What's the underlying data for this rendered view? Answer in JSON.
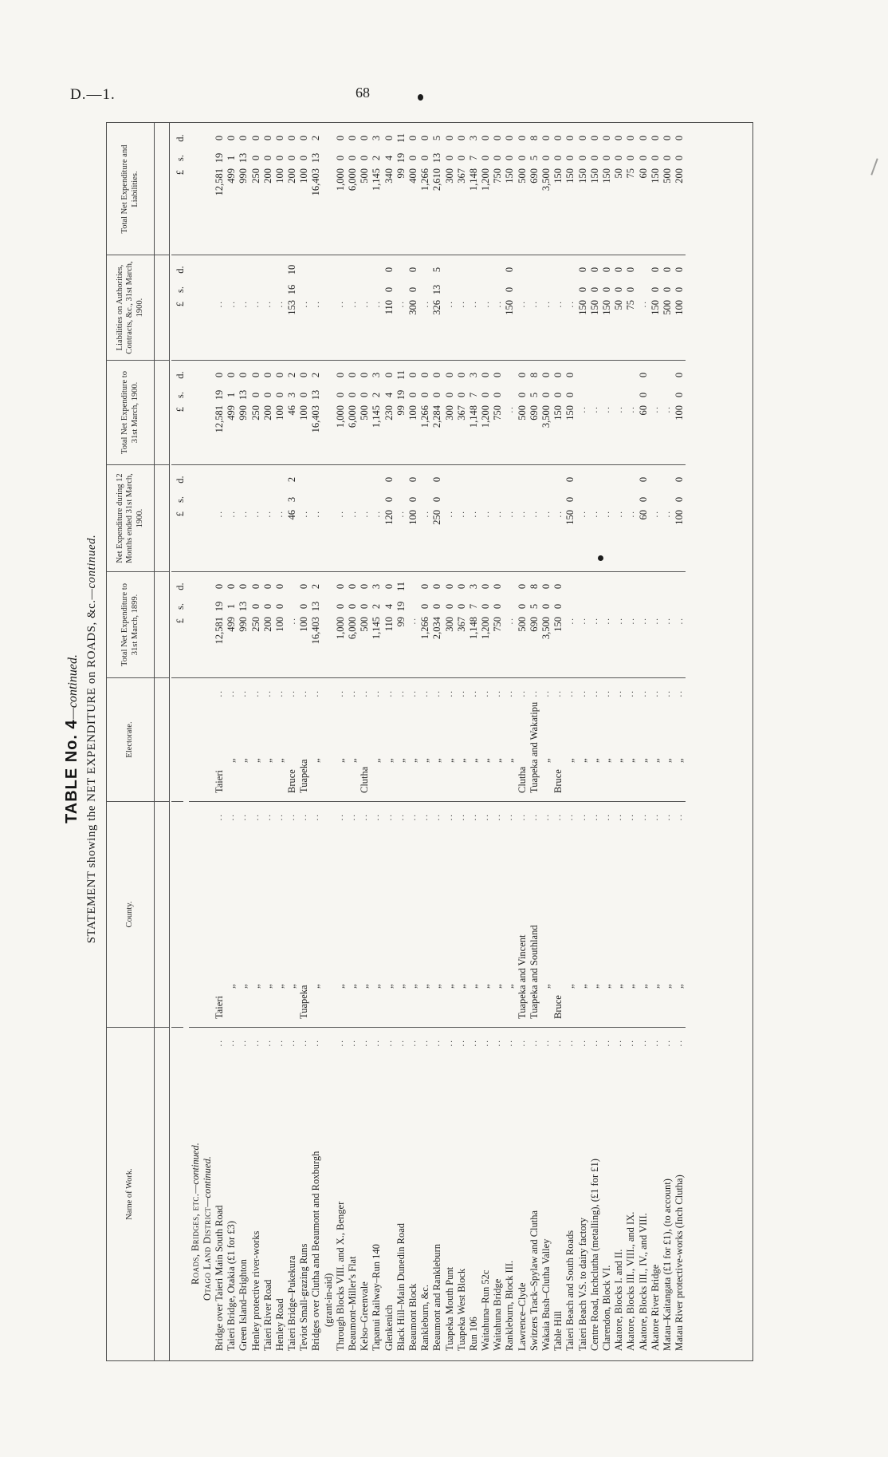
{
  "page": {
    "doc_ref": "D.—1.",
    "page_number": "68"
  },
  "title": {
    "line1_main": "TABLE No. 4",
    "line1_cont": "—continued.",
    "line2_main": "STATEMENT showing the NET EXPENDITURE on ROADS, &c.",
    "line2_cont": "—continued."
  },
  "table": {
    "headers": [
      "Name of Work.",
      "County.",
      "Electorate.",
      "Total Net Expenditure to 31st March, 1899.",
      "Net Expenditure during 12 Months ended 31st March, 1900.",
      "Total Net Expenditure to 31st March, 1900.",
      "Liabilities on Authorities, Contracts, &c., 31st March, 1900.",
      "Total Net Expenditure and Liabilities."
    ],
    "currency_labels": {
      "pound": "£",
      "shillings": "s.",
      "pence": "d."
    },
    "section_heading_1_main": "Roads, Bridges, etc.",
    "section_heading_1_cont": "—continued.",
    "section_heading_2_main": "Otago Land District",
    "section_heading_2_cont": "—continued.",
    "ditto_mark": "„",
    "leader": "..",
    "rows": [
      {
        "name": "Bridge over Taieri Main South Road",
        "county": "Taieri",
        "electorate": "Taieri",
        "exp1899": [
          "12,581",
          "19",
          "0"
        ],
        "net12": null,
        "exp1900": [
          "12,581",
          "19",
          "0"
        ],
        "liab": null,
        "total": [
          "12,581",
          "19",
          "0"
        ]
      },
      {
        "name": "Taieri Bridge, Otakia (£1 for £3)",
        "county": "„",
        "electorate": "„",
        "exp1899": [
          "499",
          "1",
          "0"
        ],
        "net12": null,
        "exp1900": [
          "499",
          "1",
          "0"
        ],
        "liab": null,
        "total": [
          "499",
          "1",
          "0"
        ]
      },
      {
        "name": "Green Island–Brighton",
        "county": "„",
        "electorate": "„",
        "exp1899": [
          "990",
          "13",
          "0"
        ],
        "net12": null,
        "exp1900": [
          "990",
          "13",
          "0"
        ],
        "liab": null,
        "total": [
          "990",
          "13",
          "0"
        ]
      },
      {
        "name": "Henley protective river-works",
        "county": "„",
        "electorate": "„",
        "exp1899": [
          "250",
          "0",
          "0"
        ],
        "net12": null,
        "exp1900": [
          "250",
          "0",
          "0"
        ],
        "liab": null,
        "total": [
          "250",
          "0",
          "0"
        ]
      },
      {
        "name": "Taieri River Road",
        "county": "„",
        "electorate": "„",
        "exp1899": [
          "200",
          "0",
          "0"
        ],
        "net12": null,
        "exp1900": [
          "200",
          "0",
          "0"
        ],
        "liab": null,
        "total": [
          "200",
          "0",
          "0"
        ]
      },
      {
        "name": "Henley Road",
        "county": "„",
        "electorate": "„",
        "exp1899": [
          "100",
          "0",
          "0"
        ],
        "net12": null,
        "exp1900": [
          "100",
          "0",
          "0"
        ],
        "liab": null,
        "total": [
          "100",
          "0",
          "0"
        ]
      },
      {
        "name": "Taieri Bridge–Pukekura",
        "county": "„",
        "electorate": "Bruce",
        "exp1899": null,
        "net12": [
          "46",
          "3",
          "2"
        ],
        "exp1900": [
          "46",
          "3",
          "2"
        ],
        "liab": [
          "153",
          "16",
          "10"
        ],
        "total": [
          "200",
          "0",
          "0"
        ]
      },
      {
        "name": "Teviot Small-grazing Runs",
        "county": "Tuapeka",
        "electorate": "Tuapeka",
        "exp1899": [
          "100",
          "0",
          "0"
        ],
        "net12": null,
        "exp1900": [
          "100",
          "0",
          "0"
        ],
        "liab": null,
        "total": [
          "100",
          "0",
          "0"
        ]
      },
      {
        "name": "Bridges over Clutha and Beaumont and Roxburgh",
        "sub_name": "(grant-in-aid)",
        "county": "„",
        "electorate": "„",
        "exp1899": [
          "16,403",
          "13",
          "2"
        ],
        "net12": null,
        "exp1900": [
          "16,403",
          "13",
          "2"
        ],
        "liab": null,
        "total": [
          "16,403",
          "13",
          "2"
        ]
      },
      {
        "name": "Through Blocks VIII. and X., Benger",
        "county": "„",
        "electorate": "„",
        "exp1899": [
          "1,000",
          "0",
          "0"
        ],
        "net12": null,
        "exp1900": [
          "1,000",
          "0",
          "0"
        ],
        "liab": null,
        "total": [
          "1,000",
          "0",
          "0"
        ]
      },
      {
        "name": "Beaumont–Miller's Flat",
        "county": "„",
        "electorate": "„",
        "exp1899": [
          "6,000",
          "0",
          "0"
        ],
        "net12": null,
        "exp1900": [
          "6,000",
          "0",
          "0"
        ],
        "liab": null,
        "total": [
          "6,000",
          "0",
          "0"
        ]
      },
      {
        "name": "Kelso–Greenvale",
        "county": "„",
        "electorate": "Clutha",
        "exp1899": [
          "500",
          "0",
          "0"
        ],
        "net12": null,
        "exp1900": [
          "500",
          "0",
          "0"
        ],
        "liab": null,
        "total": [
          "500",
          "0",
          "0"
        ]
      },
      {
        "name": "Tapanui Railway–Run 140",
        "county": "„",
        "electorate": "„",
        "exp1899": [
          "1,145",
          "2",
          "3"
        ],
        "net12": null,
        "exp1900": [
          "1,145",
          "2",
          "3"
        ],
        "liab": null,
        "total": [
          "1,145",
          "2",
          "3"
        ]
      },
      {
        "name": "Glenkenich",
        "county": "„",
        "electorate": "„",
        "exp1899": [
          "110",
          "4",
          "0"
        ],
        "net12": [
          "120",
          "0",
          "0"
        ],
        "exp1900": [
          "230",
          "4",
          "0"
        ],
        "liab": [
          "110",
          "0",
          "0"
        ],
        "total": [
          "340",
          "4",
          "0"
        ]
      },
      {
        "name": "Black Hill–Main Dunedin Road",
        "county": "„",
        "electorate": "„",
        "exp1899": [
          "99",
          "19",
          "11"
        ],
        "net12": null,
        "exp1900": [
          "99",
          "19",
          "11"
        ],
        "liab": null,
        "total": [
          "99",
          "19",
          "11"
        ]
      },
      {
        "name": "Beaumont Block",
        "county": "„",
        "electorate": "„",
        "exp1899": null,
        "net12": [
          "100",
          "0",
          "0"
        ],
        "exp1900": [
          "100",
          "0",
          "0"
        ],
        "liab": [
          "300",
          "0",
          "0"
        ],
        "total": [
          "400",
          "0",
          "0"
        ]
      },
      {
        "name": "Rankleburn, &c.",
        "county": "„",
        "electorate": "„",
        "exp1899": [
          "1,266",
          "0",
          "0"
        ],
        "net12": null,
        "exp1900": [
          "1,266",
          "0",
          "0"
        ],
        "liab": null,
        "total": [
          "1,266",
          "0",
          "0"
        ]
      },
      {
        "name": "Beaumont and Rankleburn",
        "county": "„",
        "electorate": "„",
        "exp1899": [
          "2,034",
          "0",
          "0"
        ],
        "net12": [
          "250",
          "0",
          "0"
        ],
        "exp1900": [
          "2,284",
          "0",
          "0"
        ],
        "liab": [
          "326",
          "13",
          "5"
        ],
        "total": [
          "2,610",
          "13",
          "5"
        ]
      },
      {
        "name": "Tuapeka Mouth Punt",
        "county": "„",
        "electorate": "„",
        "exp1899": [
          "300",
          "0",
          "0"
        ],
        "net12": null,
        "exp1900": [
          "300",
          "0",
          "0"
        ],
        "liab": null,
        "total": [
          "300",
          "0",
          "0"
        ]
      },
      {
        "name": "Tuapeka West Block",
        "county": "„",
        "electorate": "„",
        "exp1899": [
          "367",
          "0",
          "0"
        ],
        "net12": null,
        "exp1900": [
          "367",
          "0",
          "0"
        ],
        "liab": null,
        "total": [
          "367",
          "0",
          "0"
        ]
      },
      {
        "name": "Run 106",
        "county": "„",
        "electorate": "„",
        "exp1899": [
          "1,148",
          "7",
          "3"
        ],
        "net12": null,
        "exp1900": [
          "1,148",
          "7",
          "3"
        ],
        "liab": null,
        "total": [
          "1,148",
          "7",
          "3"
        ]
      },
      {
        "name": "Waitahuna–Run 52c",
        "county": "„",
        "electorate": "„",
        "exp1899": [
          "1,200",
          "0",
          "0"
        ],
        "net12": null,
        "exp1900": [
          "1,200",
          "0",
          "0"
        ],
        "liab": null,
        "total": [
          "1,200",
          "0",
          "0"
        ]
      },
      {
        "name": "Waitahuna Bridge",
        "county": "„",
        "electorate": "„",
        "exp1899": [
          "750",
          "0",
          "0"
        ],
        "net12": null,
        "exp1900": [
          "750",
          "0",
          "0"
        ],
        "liab": null,
        "total": [
          "750",
          "0",
          "0"
        ]
      },
      {
        "name": "Rankleburn, Block III.",
        "county": "„",
        "electorate": "„",
        "exp1899": null,
        "net12": null,
        "exp1900": null,
        "liab": [
          "150",
          "0",
          "0"
        ],
        "total": [
          "150",
          "0",
          "0"
        ]
      },
      {
        "name": "Lawrence–Clyde",
        "county": "Tuapeka and Vincent",
        "electorate": "Clutha",
        "exp1899": [
          "500",
          "0",
          "0"
        ],
        "net12": null,
        "exp1900": [
          "500",
          "0",
          "0"
        ],
        "liab": null,
        "total": [
          "500",
          "0",
          "0"
        ]
      },
      {
        "name": "Switzers Track–Spylaw and Clutha",
        "county": "Tuapeka and Southland",
        "electorate": "Tuapeka and Wakatipu",
        "exp1899": [
          "690",
          "5",
          "8"
        ],
        "net12": null,
        "exp1900": [
          "690",
          "5",
          "8"
        ],
        "liab": null,
        "total": [
          "690",
          "5",
          "8"
        ]
      },
      {
        "name": "Wakaia Bush–Clutha Valley",
        "county": "„",
        "electorate": "„",
        "exp1899": [
          "3,500",
          "0",
          "0"
        ],
        "net12": null,
        "exp1900": [
          "3,500",
          "0",
          "0"
        ],
        "liab": null,
        "total": [
          "3,500",
          "0",
          "0"
        ]
      },
      {
        "name": "Table Hill",
        "county": "Bruce",
        "electorate": "Bruce",
        "exp1899": [
          "150",
          "0",
          "0"
        ],
        "net12": null,
        "exp1900": [
          "150",
          "0",
          "0"
        ],
        "liab": null,
        "total": [
          "150",
          "0",
          "0"
        ]
      },
      {
        "name": "Taieri Beach and South Roads",
        "county": "„",
        "electorate": "„",
        "exp1899": null,
        "net12": [
          "150",
          "0",
          "0"
        ],
        "exp1900": [
          "150",
          "0",
          "0"
        ],
        "liab": null,
        "total": [
          "150",
          "0",
          "0"
        ]
      },
      {
        "name": "Taieri Beach V.S. to dairy factory",
        "county": "„",
        "electorate": "„",
        "exp1899": null,
        "net12": null,
        "exp1900": null,
        "liab": [
          "150",
          "0",
          "0"
        ],
        "total": [
          "150",
          "0",
          "0"
        ]
      },
      {
        "name": "Centre Road, Inchclutha (metalling), (£1 for £1)",
        "county": "„",
        "electorate": "„",
        "exp1899": null,
        "net12": null,
        "exp1900": null,
        "liab": [
          "150",
          "0",
          "0"
        ],
        "total": [
          "150",
          "0",
          "0"
        ]
      },
      {
        "name": "Clarendon, Block VI.",
        "county": "„",
        "electorate": "„",
        "exp1899": null,
        "net12": null,
        "exp1900": null,
        "liab": [
          "150",
          "0",
          "0"
        ],
        "total": [
          "150",
          "0",
          "0"
        ]
      },
      {
        "name": "Akatore, Blocks I. and II.",
        "county": "„",
        "electorate": "„",
        "exp1899": null,
        "net12": null,
        "exp1900": null,
        "liab": [
          "50",
          "0",
          "0"
        ],
        "total": [
          "50",
          "0",
          "0"
        ]
      },
      {
        "name": "Akatore, Blocks III., VIII., and IX.",
        "county": "„",
        "electorate": "„",
        "exp1899": null,
        "net12": null,
        "exp1900": null,
        "liab": [
          "75",
          "0",
          "0"
        ],
        "total": [
          "75",
          "0",
          "0"
        ]
      },
      {
        "name": "Akatore, Blocks III., IV., and VIII.",
        "county": "„",
        "electorate": "„",
        "exp1899": null,
        "net12": [
          "60",
          "0",
          "0"
        ],
        "exp1900": [
          "60",
          "0",
          "0"
        ],
        "liab": null,
        "total": [
          "60",
          "0",
          "0"
        ]
      },
      {
        "name": "Akatore River Bridge",
        "county": "„",
        "electorate": "„",
        "exp1899": null,
        "net12": null,
        "exp1900": null,
        "liab": [
          "150",
          "0",
          "0"
        ],
        "total": [
          "150",
          "0",
          "0"
        ]
      },
      {
        "name": "Matau–Kaitangata (£1 for £1), (to account)",
        "county": "„",
        "electorate": "„",
        "exp1899": null,
        "net12": null,
        "exp1900": null,
        "liab": [
          "500",
          "0",
          "0"
        ],
        "total": [
          "500",
          "0",
          "0"
        ]
      },
      {
        "name": "Matau River protective-works (Inch Clutha)",
        "county": "„",
        "electorate": "„",
        "exp1899": null,
        "net12": [
          "100",
          "0",
          "0"
        ],
        "exp1900": [
          "100",
          "0",
          "0"
        ],
        "liab": [
          "100",
          "0",
          "0"
        ],
        "total": [
          "200",
          "0",
          "0"
        ]
      }
    ]
  }
}
